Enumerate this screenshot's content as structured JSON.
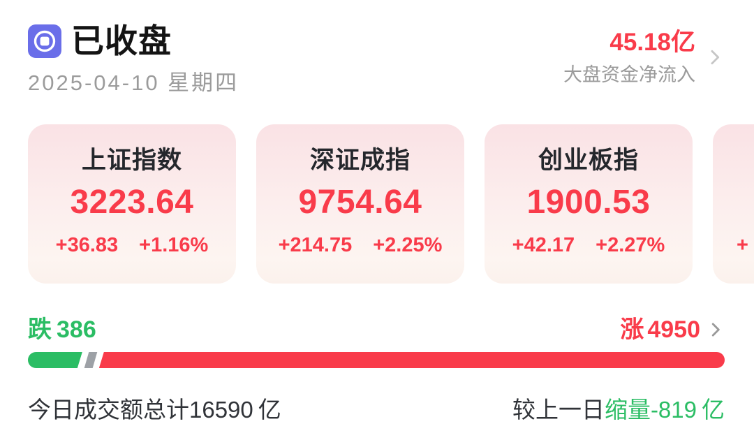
{
  "header": {
    "title": "已收盘",
    "date": "2025-04-10 星期四",
    "net_inflow": {
      "value": "45.18亿",
      "label": "大盘资金净流入"
    }
  },
  "indices": [
    {
      "name": "上证指数",
      "value": "3223.64",
      "change": "+36.83",
      "change_pct": "+1.16%"
    },
    {
      "name": "深证成指",
      "value": "9754.64",
      "change": "+214.75",
      "change_pct": "+2.25%"
    },
    {
      "name": "创业板指",
      "value": "1900.53",
      "change": "+42.17",
      "change_pct": "+2.27%"
    },
    {
      "name": "",
      "value": "",
      "change": "+",
      "change_pct": ""
    }
  ],
  "breadth": {
    "down_label": "跌",
    "down_count": "386",
    "up_label": "涨",
    "up_count": "4950",
    "bar": {
      "down_pct": 7.8,
      "flat_pct": 1.2,
      "up_pct": 91.0
    }
  },
  "turnover": {
    "today_label": "今日成交额总计",
    "today_value": "16590",
    "today_unit": "亿",
    "compare_label": "较上一日",
    "compare_value": "缩量-819",
    "compare_unit": "亿"
  },
  "colors": {
    "up_red": "#f93b4a",
    "down_green": "#2bbd64",
    "flat_gray": "#9da1a6",
    "icon_purple": "#6a6ee9",
    "muted_gray": "#9b9b9b"
  }
}
